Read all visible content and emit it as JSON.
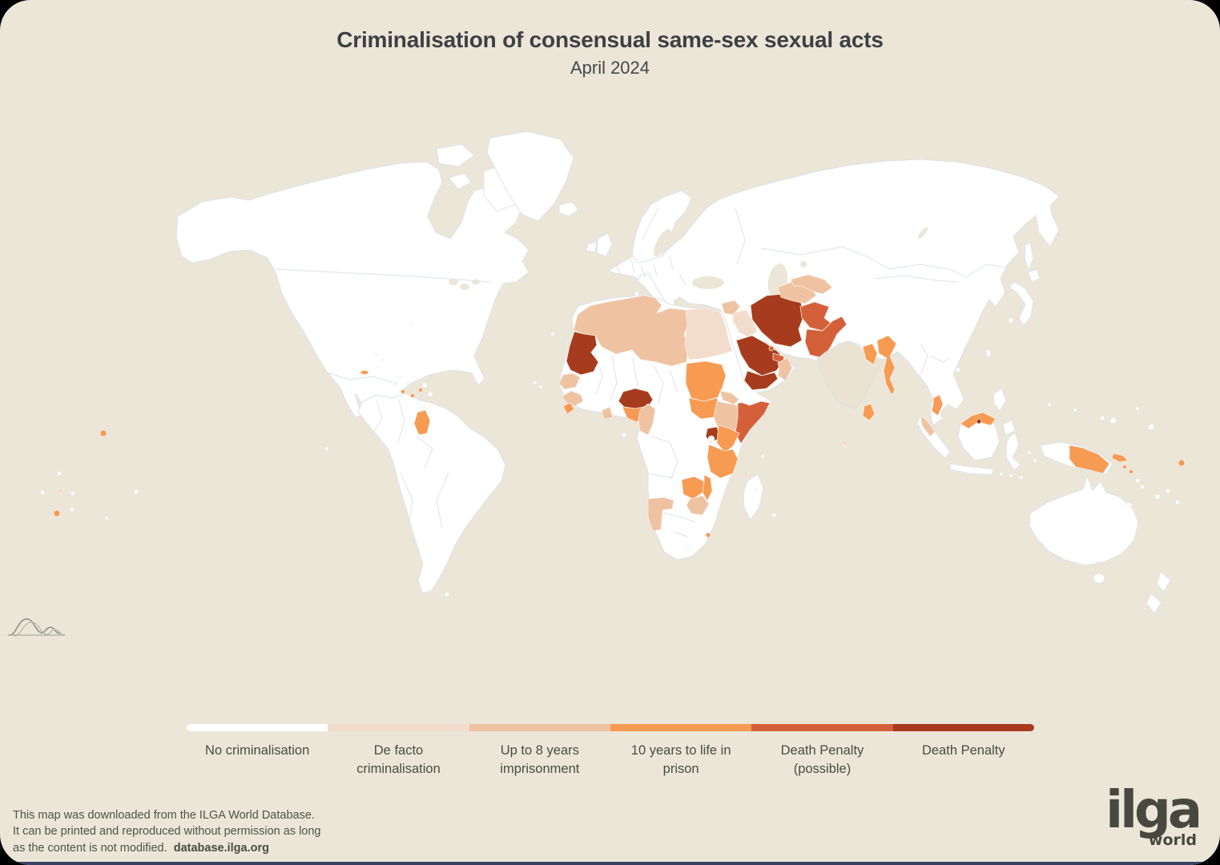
{
  "page": {
    "card_background": "#ECE6D8",
    "bottom_bar_color": "#3A4165",
    "text_color": "#3E4044"
  },
  "header": {
    "title": "Criminalisation of consensual same-sex sexual acts",
    "subtitle": "April 2024"
  },
  "legend": {
    "items": [
      {
        "id": "no_crim",
        "label": "No criminalisation",
        "color": "#FFFFFF"
      },
      {
        "id": "de_facto",
        "label": "De facto criminalisation",
        "color": "#F3DCCB"
      },
      {
        "id": "up_to_8",
        "label": "Up to 8 years imprisonment",
        "color": "#EFC2A1"
      },
      {
        "id": "ten_to_life",
        "label": "10 years to life in prison",
        "color": "#F79A52"
      },
      {
        "id": "death_possible",
        "label": "Death Penalty (possible)",
        "color": "#D4603A"
      },
      {
        "id": "death",
        "label": "Death Penalty",
        "color": "#A63C1D"
      }
    ]
  },
  "map": {
    "ocean_color": "#ECE6D8",
    "land_color": "#FFFFFF",
    "border_color": "#DCE3E8",
    "no_data_color": "#EAE3D1",
    "disputed_color": "#E7E6E1",
    "countries": [
      {
        "name": "Morocco",
        "category": "up_to_8"
      },
      {
        "name": "Algeria",
        "category": "up_to_8"
      },
      {
        "name": "Tunisia",
        "category": "up_to_8"
      },
      {
        "name": "Libya",
        "category": "up_to_8"
      },
      {
        "name": "Western Sahara",
        "category": "disputed"
      },
      {
        "name": "Egypt",
        "category": "de_facto"
      },
      {
        "name": "Mauritania",
        "category": "death"
      },
      {
        "name": "Senegal",
        "category": "up_to_8"
      },
      {
        "name": "Guinea",
        "category": "up_to_8"
      },
      {
        "name": "Sierra Leone",
        "category": "ten_to_life"
      },
      {
        "name": "Ghana",
        "category": "up_to_8"
      },
      {
        "name": "Nigeria (north)",
        "category": "death"
      },
      {
        "name": "Nigeria (south)",
        "category": "ten_to_life"
      },
      {
        "name": "Cameroon",
        "category": "up_to_8"
      },
      {
        "name": "Sudan",
        "category": "ten_to_life"
      },
      {
        "name": "South Sudan",
        "category": "ten_to_life"
      },
      {
        "name": "Eritrea",
        "category": "up_to_8"
      },
      {
        "name": "Ethiopia",
        "category": "up_to_8"
      },
      {
        "name": "Somalia",
        "category": "death_possible"
      },
      {
        "name": "Uganda",
        "category": "death"
      },
      {
        "name": "Kenya",
        "category": "ten_to_life"
      },
      {
        "name": "Tanzania",
        "category": "ten_to_life"
      },
      {
        "name": "Zambia",
        "category": "ten_to_life"
      },
      {
        "name": "Malawi",
        "category": "ten_to_life"
      },
      {
        "name": "Zimbabwe",
        "category": "up_to_8"
      },
      {
        "name": "Namibia",
        "category": "up_to_8"
      },
      {
        "name": "Eswatini",
        "category": "ten_to_life"
      },
      {
        "name": "Comoros",
        "category": "de_facto"
      },
      {
        "name": "Syria",
        "category": "up_to_8"
      },
      {
        "name": "Iraq",
        "category": "de_facto"
      },
      {
        "name": "Saudi Arabia",
        "category": "death"
      },
      {
        "name": "Yemen",
        "category": "death"
      },
      {
        "name": "Oman",
        "category": "up_to_8"
      },
      {
        "name": "Qatar",
        "category": "death_possible"
      },
      {
        "name": "United Arab Emirates",
        "category": "death_possible"
      },
      {
        "name": "Iran",
        "category": "death"
      },
      {
        "name": "Afghanistan",
        "category": "death_possible"
      },
      {
        "name": "Pakistan",
        "category": "death_possible"
      },
      {
        "name": "Turkmenistan",
        "category": "up_to_8"
      },
      {
        "name": "Uzbekistan",
        "category": "up_to_8"
      },
      {
        "name": "India",
        "category": "no_data"
      },
      {
        "name": "Bangladesh",
        "category": "ten_to_life"
      },
      {
        "name": "Myanmar",
        "category": "ten_to_life"
      },
      {
        "name": "Sri Lanka",
        "category": "ten_to_life"
      },
      {
        "name": "Maldives",
        "category": "de_facto"
      },
      {
        "name": "Indonesia (Aceh)",
        "category": "up_to_8"
      },
      {
        "name": "Malaysia",
        "category": "ten_to_life"
      },
      {
        "name": "Malaysia (Borneo)",
        "category": "ten_to_life"
      },
      {
        "name": "Brunei",
        "category": "death"
      },
      {
        "name": "Papua New Guinea",
        "category": "ten_to_life"
      },
      {
        "name": "Papua New Guinea (islands)",
        "category": "ten_to_life"
      },
      {
        "name": "Solomon Islands",
        "category": "ten_to_life"
      },
      {
        "name": "Samoa",
        "category": "ten_to_life"
      },
      {
        "name": "Kiribati",
        "category": "ten_to_life"
      },
      {
        "name": "Tonga",
        "category": "ten_to_life"
      },
      {
        "name": "Cook Islands",
        "category": "de_facto"
      },
      {
        "name": "Jamaica",
        "category": "ten_to_life"
      },
      {
        "name": "Saint Lucia",
        "category": "ten_to_life"
      },
      {
        "name": "Saint Vincent and the Grenadines",
        "category": "ten_to_life"
      },
      {
        "name": "Grenada",
        "category": "ten_to_life"
      },
      {
        "name": "Guyana",
        "category": "ten_to_life"
      }
    ]
  },
  "chart_data": {
    "type": "heatmap",
    "title": "Criminalisation of consensual same-sex sexual acts",
    "subtitle": "April 2024",
    "legend_entries": [
      "No criminalisation",
      "De facto criminalisation",
      "Up to 8 years imprisonment",
      "10 years to life in prison",
      "Death Penalty (possible)",
      "Death Penalty"
    ],
    "legend_position": "bottom",
    "categories_by_country": {
      "de_facto": [
        "Egypt",
        "Iraq",
        "Maldives",
        "Comoros",
        "Cook Islands"
      ],
      "up_to_8": [
        "Morocco",
        "Algeria",
        "Tunisia",
        "Libya",
        "Senegal",
        "Guinea",
        "Ghana",
        "Cameroon",
        "Eritrea",
        "Ethiopia",
        "Zimbabwe",
        "Namibia",
        "Syria",
        "Oman",
        "Turkmenistan",
        "Uzbekistan",
        "Indonesia (Aceh)"
      ],
      "ten_to_life": [
        "Sierra Leone",
        "Nigeria (south)",
        "Sudan",
        "South Sudan",
        "Kenya",
        "Tanzania",
        "Zambia",
        "Malawi",
        "Eswatini",
        "Jamaica",
        "Saint Lucia",
        "Saint Vincent and the Grenadines",
        "Grenada",
        "Guyana",
        "Bangladesh",
        "Myanmar",
        "Sri Lanka",
        "Malaysia",
        "Papua New Guinea",
        "Solomon Islands",
        "Samoa",
        "Kiribati",
        "Tonga"
      ],
      "death_possible": [
        "Somalia",
        "Qatar",
        "United Arab Emirates",
        "Afghanistan",
        "Pakistan"
      ],
      "death": [
        "Mauritania",
        "Nigeria (north)",
        "Uganda",
        "Saudi Arabia",
        "Yemen",
        "Iran",
        "Brunei"
      ]
    }
  },
  "footer": {
    "line1": "This map was downloaded from the ILGA World Database.",
    "line2": "It can be printed and reproduced without permission as long",
    "line3": "as the content is not modified.",
    "link": "database.ilga.org"
  },
  "logo": {
    "text": "ilga",
    "subtext": "world"
  }
}
